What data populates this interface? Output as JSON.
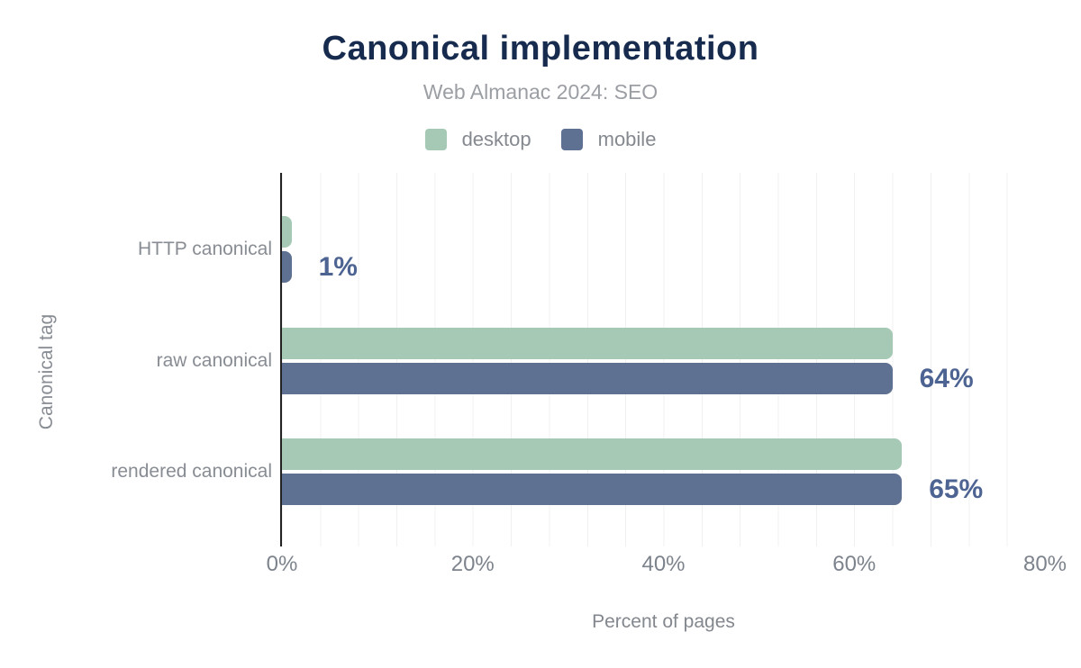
{
  "title": "Canonical implementation",
  "subtitle": "Web Almanac 2024: SEO",
  "legend": [
    {
      "label": "desktop",
      "color": "#a5c9b5"
    },
    {
      "label": "mobile",
      "color": "#5f7192"
    }
  ],
  "chart_data": {
    "type": "bar",
    "orientation": "horizontal",
    "title": "Canonical implementation",
    "subtitle": "Web Almanac 2024: SEO",
    "categories": [
      "HTTP canonical",
      "raw canonical",
      "rendered canonical"
    ],
    "series": [
      {
        "name": "desktop",
        "color": "#a5c9b5",
        "values": [
          1,
          64,
          65
        ]
      },
      {
        "name": "mobile",
        "color": "#5f7192",
        "values": [
          1,
          64,
          65
        ]
      }
    ],
    "value_labels": [
      "1%",
      "64%",
      "65%"
    ],
    "xlabel": "Percent of pages",
    "ylabel": "Canonical tag",
    "xlim": [
      0,
      80
    ],
    "x_ticks": [
      "0%",
      "20%",
      "40%",
      "60%",
      "80%"
    ],
    "grid": "vertical, minor every 4%, major labels every 20%",
    "legend_position": "top-center"
  },
  "colors": {
    "title": "#172b4e",
    "subtitle": "#9b9ea3",
    "value_label": "#4d6493",
    "axis_text": "#7d838c",
    "gridline": "#f0f0f2",
    "axis_line": "#222222",
    "background": "#ffffff"
  }
}
